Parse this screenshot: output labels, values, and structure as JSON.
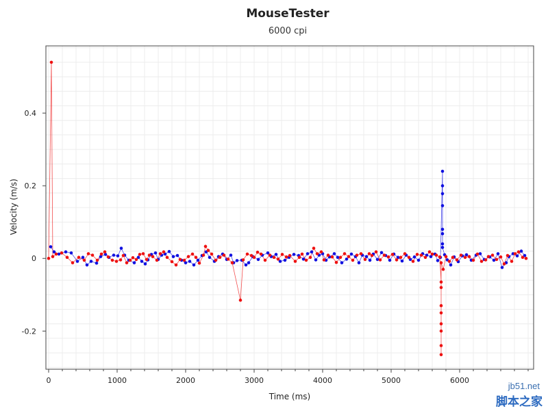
{
  "chart_data": {
    "type": "scatter",
    "title": "MouseTester",
    "subtitle": "6000 cpi",
    "xlabel": "Time (ms)",
    "ylabel": "Velocity (m/s)",
    "xlim": [
      -40,
      7080
    ],
    "ylim": [
      -0.305,
      0.585
    ],
    "xticks": [
      0,
      1000,
      2000,
      3000,
      4000,
      5000,
      6000
    ],
    "xtick_labels": [
      "0",
      "1000",
      "2000",
      "3000",
      "4000",
      "5000",
      "6000"
    ],
    "yticks": [
      -0.2,
      0,
      0.2,
      0.4
    ],
    "ytick_labels": [
      "-0.2",
      "0",
      "0.2",
      "0.4"
    ],
    "grid": true,
    "colors": {
      "x": "#1010e0",
      "y": "#ee1111",
      "grid": "#ececec",
      "axis": "#444444"
    },
    "series": [
      {
        "color": "#1010e0",
        "points": [
          [
            30,
            0.032
          ],
          [
            80,
            0.018
          ],
          [
            150,
            0.012
          ],
          [
            250,
            0.018
          ],
          [
            330,
            0.015
          ],
          [
            420,
            -0.008
          ],
          [
            500,
            0.003
          ],
          [
            560,
            -0.018
          ],
          [
            620,
            -0.008
          ],
          [
            700,
            -0.013
          ],
          [
            760,
            0.005
          ],
          [
            830,
            0.011
          ],
          [
            880,
            0.003
          ],
          [
            950,
            0.009
          ],
          [
            1010,
            0.007
          ],
          [
            1060,
            0.028
          ],
          [
            1110,
            0.009
          ],
          [
            1170,
            -0.005
          ],
          [
            1250,
            -0.012
          ],
          [
            1310,
            0.003
          ],
          [
            1360,
            -0.008
          ],
          [
            1410,
            -0.015
          ],
          [
            1450,
            -0.004
          ],
          [
            1500,
            0.011
          ],
          [
            1560,
            0.015
          ],
          [
            1600,
            -0.003
          ],
          [
            1650,
            0.009
          ],
          [
            1700,
            0.012
          ],
          [
            1760,
            0.019
          ],
          [
            1820,
            0.005
          ],
          [
            1880,
            0.008
          ],
          [
            1940,
            -0.005
          ],
          [
            2000,
            -0.012
          ],
          [
            2060,
            -0.008
          ],
          [
            2120,
            -0.018
          ],
          [
            2180,
            -0.005
          ],
          [
            2240,
            0.008
          ],
          [
            2300,
            0.018
          ],
          [
            2350,
            0.003
          ],
          [
            2420,
            -0.008
          ],
          [
            2480,
            0.005
          ],
          [
            2540,
            0.012
          ],
          [
            2600,
            -0.003
          ],
          [
            2660,
            0.009
          ],
          [
            2700,
            -0.012
          ],
          [
            2750,
            -0.006
          ],
          [
            2820,
            -0.005
          ],
          [
            2880,
            -0.018
          ],
          [
            2920,
            -0.012
          ],
          [
            2980,
            0.005
          ],
          [
            3060,
            -0.003
          ],
          [
            3120,
            0.009
          ],
          [
            3200,
            0.015
          ],
          [
            3250,
            0.005
          ],
          [
            3320,
            0.011
          ],
          [
            3380,
            -0.008
          ],
          [
            3450,
            -0.005
          ],
          [
            3510,
            0.003
          ],
          [
            3580,
            0.011
          ],
          [
            3650,
            0.008
          ],
          [
            3720,
            -0.002
          ],
          [
            3780,
            0.013
          ],
          [
            3840,
            0.018
          ],
          [
            3900,
            -0.004
          ],
          [
            3950,
            0.009
          ],
          [
            4000,
            0.013
          ],
          [
            4050,
            -0.005
          ],
          [
            4100,
            0.004
          ],
          [
            4170,
            0.013
          ],
          [
            4220,
            0.003
          ],
          [
            4280,
            -0.012
          ],
          [
            4350,
            -0.002
          ],
          [
            4420,
            0.012
          ],
          [
            4480,
            0.005
          ],
          [
            4530,
            -0.012
          ],
          [
            4580,
            0.009
          ],
          [
            4640,
            0.005
          ],
          [
            4690,
            -0.005
          ],
          [
            4740,
            0.012
          ],
          [
            4800,
            -0.003
          ],
          [
            4860,
            0.016
          ],
          [
            4920,
            0.008
          ],
          [
            4980,
            -0.005
          ],
          [
            5040,
            0.012
          ],
          [
            5100,
            0.003
          ],
          [
            5160,
            -0.007
          ],
          [
            5220,
            0.009
          ],
          [
            5280,
            -0.003
          ],
          [
            5340,
            0.004
          ],
          [
            5400,
            -0.005
          ],
          [
            5460,
            0.013
          ],
          [
            5520,
            0.009
          ],
          [
            5580,
            0.005
          ],
          [
            5640,
            0.012
          ],
          [
            5680,
            -0.006
          ],
          [
            5720,
            0.003
          ],
          [
            5750,
            0.24
          ],
          [
            5750,
            0.2
          ],
          [
            5750,
            0.178
          ],
          [
            5750,
            0.145
          ],
          [
            5750,
            0.08
          ],
          [
            5750,
            0.068
          ],
          [
            5750,
            0.04
          ],
          [
            5750,
            0.03
          ],
          [
            5780,
            0.01
          ],
          [
            5820,
            -0.004
          ],
          [
            5870,
            -0.018
          ],
          [
            5920,
            0.004
          ],
          [
            5980,
            -0.009
          ],
          [
            6040,
            0.007
          ],
          [
            6100,
            0.01
          ],
          [
            6170,
            -0.005
          ],
          [
            6240,
            0.009
          ],
          [
            6300,
            0.013
          ],
          [
            6360,
            -0.003
          ],
          [
            6440,
            0.004
          ],
          [
            6500,
            -0.005
          ],
          [
            6560,
            0.013
          ],
          [
            6620,
            -0.025
          ],
          [
            6680,
            -0.012
          ],
          [
            6720,
            0.005
          ],
          [
            6780,
            0.013
          ],
          [
            6840,
            0.007
          ],
          [
            6900,
            0.02
          ],
          [
            6950,
            0.008
          ]
        ]
      },
      {
        "color": "#ee1111",
        "points": [
          [
            40,
            0.54
          ],
          [
            0,
            0.0
          ],
          [
            60,
            0.005
          ],
          [
            110,
            0.012
          ],
          [
            190,
            0.015
          ],
          [
            270,
            0.003
          ],
          [
            350,
            -0.012
          ],
          [
            440,
            0.003
          ],
          [
            520,
            -0.005
          ],
          [
            580,
            0.013
          ],
          [
            640,
            0.009
          ],
          [
            710,
            -0.005
          ],
          [
            770,
            0.012
          ],
          [
            820,
            0.018
          ],
          [
            870,
            0.004
          ],
          [
            930,
            -0.005
          ],
          [
            990,
            -0.008
          ],
          [
            1050,
            -0.004
          ],
          [
            1090,
            0.008
          ],
          [
            1140,
            -0.012
          ],
          [
            1190,
            -0.005
          ],
          [
            1230,
            0.002
          ],
          [
            1280,
            -0.003
          ],
          [
            1330,
            0.011
          ],
          [
            1380,
            0.013
          ],
          [
            1430,
            -0.003
          ],
          [
            1470,
            0.009
          ],
          [
            1520,
            0.005
          ],
          [
            1580,
            -0.005
          ],
          [
            1630,
            0.013
          ],
          [
            1680,
            0.018
          ],
          [
            1730,
            0.003
          ],
          [
            1800,
            -0.009
          ],
          [
            1860,
            -0.018
          ],
          [
            1920,
            -0.003
          ],
          [
            1980,
            -0.005
          ],
          [
            2040,
            0.005
          ],
          [
            2100,
            0.012
          ],
          [
            2150,
            0.003
          ],
          [
            2200,
            -0.013
          ],
          [
            2260,
            0.009
          ],
          [
            2290,
            0.033
          ],
          [
            2330,
            0.022
          ],
          [
            2380,
            0.012
          ],
          [
            2440,
            -0.005
          ],
          [
            2500,
            0.003
          ],
          [
            2560,
            0.009
          ],
          [
            2620,
            -0.002
          ],
          [
            2680,
            -0.012
          ],
          [
            2800,
            -0.115
          ],
          [
            2840,
            -0.004
          ],
          [
            2900,
            0.012
          ],
          [
            2960,
            0.008
          ],
          [
            3000,
            0.003
          ],
          [
            3050,
            0.017
          ],
          [
            3100,
            0.012
          ],
          [
            3160,
            -0.005
          ],
          [
            3230,
            0.009
          ],
          [
            3290,
            0.003
          ],
          [
            3350,
            -0.002
          ],
          [
            3410,
            0.011
          ],
          [
            3470,
            0.004
          ],
          [
            3520,
            0.008
          ],
          [
            3600,
            -0.008
          ],
          [
            3660,
            0.003
          ],
          [
            3700,
            0.012
          ],
          [
            3760,
            -0.005
          ],
          [
            3820,
            0.003
          ],
          [
            3870,
            0.028
          ],
          [
            3920,
            0.013
          ],
          [
            3980,
            0.018
          ],
          [
            4020,
            -0.004
          ],
          [
            4080,
            0.009
          ],
          [
            4140,
            0.004
          ],
          [
            4200,
            -0.011
          ],
          [
            4260,
            0.003
          ],
          [
            4320,
            0.013
          ],
          [
            4380,
            0.005
          ],
          [
            4440,
            -0.005
          ],
          [
            4500,
            0.009
          ],
          [
            4560,
            0.013
          ],
          [
            4620,
            -0.003
          ],
          [
            4680,
            0.013
          ],
          [
            4720,
            0.008
          ],
          [
            4780,
            0.018
          ],
          [
            4840,
            -0.004
          ],
          [
            4900,
            0.009
          ],
          [
            4960,
            0.004
          ],
          [
            5020,
            0.011
          ],
          [
            5080,
            -0.004
          ],
          [
            5140,
            0.003
          ],
          [
            5200,
            0.013
          ],
          [
            5260,
            0.003
          ],
          [
            5320,
            -0.008
          ],
          [
            5380,
            0.011
          ],
          [
            5440,
            0.009
          ],
          [
            5500,
            0.003
          ],
          [
            5560,
            0.018
          ],
          [
            5600,
            0.012
          ],
          [
            5660,
            0.009
          ],
          [
            5710,
            0.004
          ],
          [
            5730,
            -0.065
          ],
          [
            5730,
            -0.08
          ],
          [
            5730,
            -0.13
          ],
          [
            5730,
            -0.15
          ],
          [
            5730,
            -0.18
          ],
          [
            5730,
            -0.2
          ],
          [
            5730,
            -0.24
          ],
          [
            5730,
            -0.265
          ],
          [
            5730,
            -0.012
          ],
          [
            5760,
            -0.03
          ],
          [
            5800,
            0.005
          ],
          [
            5850,
            -0.008
          ],
          [
            5900,
            0.003
          ],
          [
            5960,
            -0.004
          ],
          [
            6020,
            0.009
          ],
          [
            6080,
            0.003
          ],
          [
            6140,
            0.005
          ],
          [
            6200,
            -0.005
          ],
          [
            6260,
            0.012
          ],
          [
            6320,
            -0.008
          ],
          [
            6380,
            -0.004
          ],
          [
            6420,
            0.005
          ],
          [
            6480,
            0.009
          ],
          [
            6540,
            -0.003
          ],
          [
            6600,
            0.004
          ],
          [
            6650,
            -0.015
          ],
          [
            6700,
            0.008
          ],
          [
            6760,
            -0.008
          ],
          [
            6810,
            0.013
          ],
          [
            6860,
            0.018
          ],
          [
            6920,
            0.003
          ],
          [
            6970,
            0.0
          ]
        ]
      }
    ]
  },
  "watermark": {
    "top": "jb51.net",
    "bottom": "脚本之家"
  }
}
